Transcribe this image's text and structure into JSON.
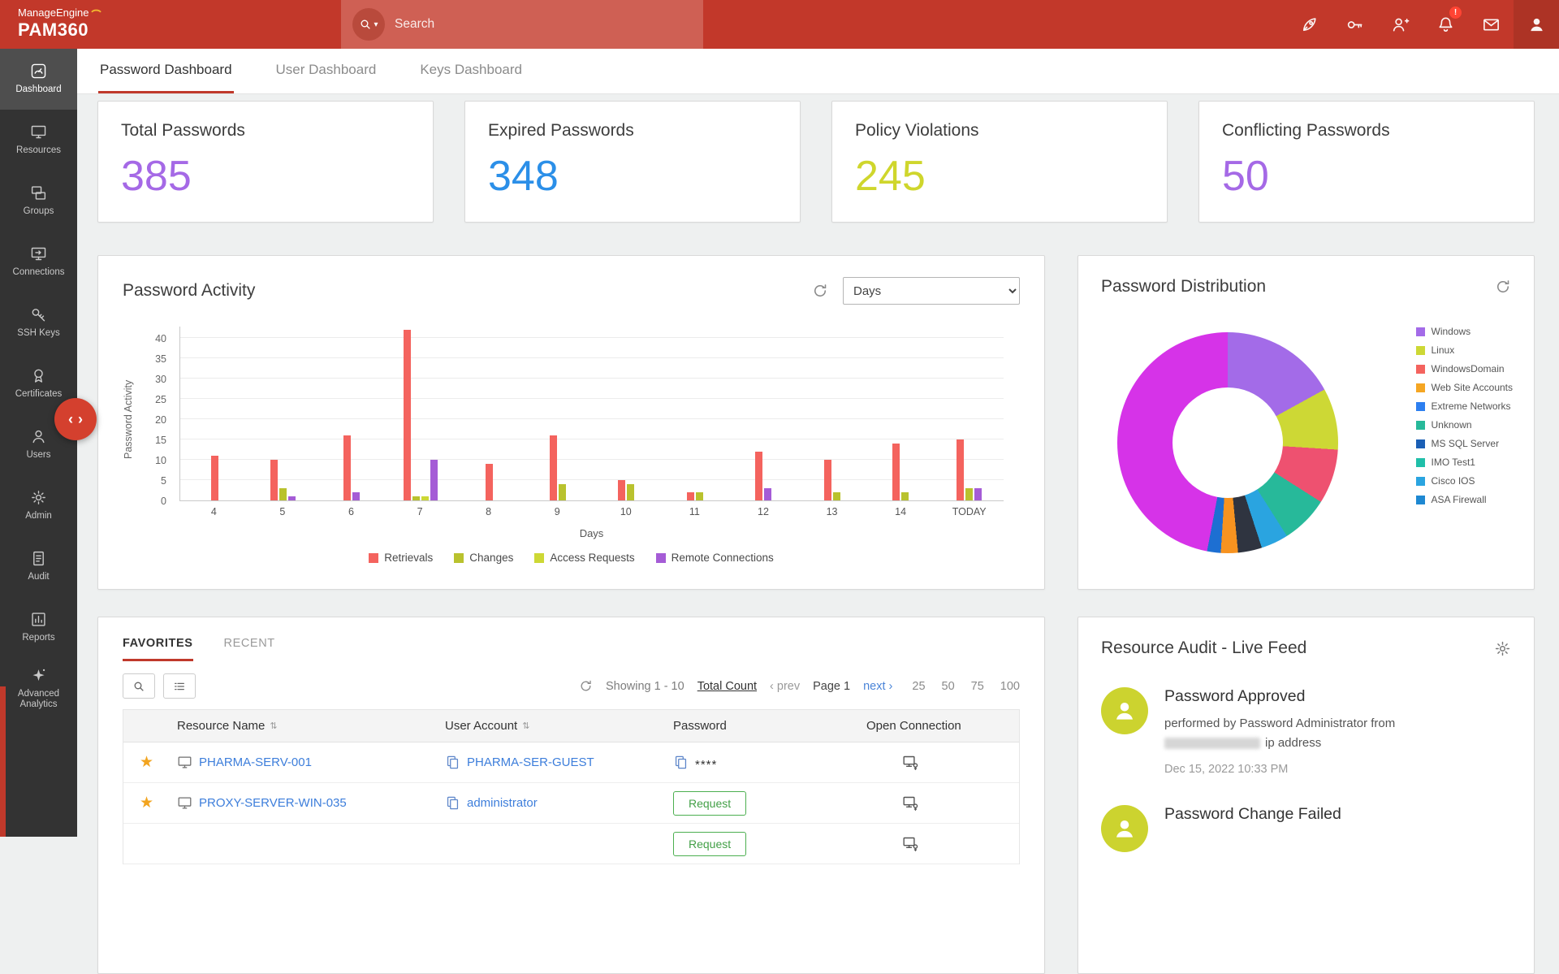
{
  "topbar": {
    "brand_top": "ManageEngine",
    "brand_bottom": "PAM360",
    "search_placeholder": "Search",
    "notification_badge": "!"
  },
  "sidebar": {
    "items": [
      {
        "label": "Dashboard",
        "active": true
      },
      {
        "label": "Resources"
      },
      {
        "label": "Groups"
      },
      {
        "label": "Connections"
      },
      {
        "label": "SSH Keys"
      },
      {
        "label": "Certificates"
      },
      {
        "label": "Users"
      },
      {
        "label": "Admin"
      },
      {
        "label": "Audit"
      },
      {
        "label": "Reports"
      },
      {
        "label": "Advanced Analytics"
      }
    ]
  },
  "tabs": [
    {
      "label": "Password Dashboard",
      "active": true
    },
    {
      "label": "User Dashboard"
    },
    {
      "label": "Keys Dashboard"
    }
  ],
  "stat_cards": [
    {
      "title": "Total Passwords",
      "value": "385",
      "color": "#a569e6"
    },
    {
      "title": "Expired Passwords",
      "value": "348",
      "color": "#2b8fe8"
    },
    {
      "title": "Policy Violations",
      "value": "245",
      "color": "#cfd62c"
    },
    {
      "title": "Conflicting Passwords",
      "value": "50",
      "color": "#a569e6"
    }
  ],
  "password_activity": {
    "title": "Password Activity",
    "interval_selected": "Days"
  },
  "password_distribution": {
    "title": "Password Distribution"
  },
  "chart_data": [
    {
      "type": "bar",
      "title": "Password Activity",
      "xlabel": "Days",
      "ylabel": "Password Activity",
      "ylim": [
        0,
        40
      ],
      "ytick_step": 5,
      "grid": true,
      "legend_position": "bottom",
      "categories": [
        "4",
        "5",
        "6",
        "7",
        "8",
        "9",
        "10",
        "11",
        "12",
        "13",
        "14",
        "TODAY"
      ],
      "series": [
        {
          "name": "Retrievals",
          "color": "#f4635e",
          "values": [
            11,
            10,
            16,
            42,
            9,
            16,
            5,
            2,
            12,
            10,
            14,
            15
          ]
        },
        {
          "name": "Changes",
          "color": "#b9c22e",
          "values": [
            0,
            3,
            0,
            1,
            0,
            4,
            4,
            2,
            0,
            2,
            2,
            3
          ]
        },
        {
          "name": "Access Requests",
          "color": "#cdd835",
          "values": [
            0,
            0,
            0,
            1,
            0,
            0,
            0,
            0,
            0,
            0,
            0,
            0
          ]
        },
        {
          "name": "Remote Connections",
          "color": "#a55cd6",
          "values": [
            0,
            1,
            2,
            10,
            0,
            0,
            0,
            0,
            3,
            0,
            0,
            3
          ]
        }
      ]
    },
    {
      "type": "pie",
      "donut": true,
      "title": "Password Distribution",
      "legend_position": "right",
      "legend": [
        {
          "label": "Windows",
          "color": "#a36be8"
        },
        {
          "label": "Linux",
          "color": "#cdd835"
        },
        {
          "label": "WindowsDomain",
          "color": "#f4635e"
        },
        {
          "label": "Web Site Accounts",
          "color": "#f5a623"
        },
        {
          "label": "Extreme Networks",
          "color": "#2d7ff0"
        },
        {
          "label": "Unknown",
          "color": "#27b99a"
        },
        {
          "label": "MS SQL Server",
          "color": "#1b5fb5"
        },
        {
          "label": "IMO Test1",
          "color": "#20bfa9"
        },
        {
          "label": "Cisco IOS",
          "color": "#2aa4e0"
        },
        {
          "label": "ASA Firewall",
          "color": "#1e88d2"
        }
      ],
      "segments": [
        {
          "color": "#a36be8",
          "value": 17
        },
        {
          "color": "#cdd835",
          "value": 9
        },
        {
          "color": "#ee5170",
          "value": 8
        },
        {
          "color": "#27b99a",
          "value": 7
        },
        {
          "color": "#2aa4e0",
          "value": 4
        },
        {
          "color": "#2f3440",
          "value": 3.5
        },
        {
          "color": "#f79320",
          "value": 2.5
        },
        {
          "color": "#1d6fd2",
          "value": 2
        },
        {
          "color": "#d633e8",
          "value": 47
        }
      ]
    }
  ],
  "favorites": {
    "tabs": [
      {
        "label": "FAVORITES",
        "active": true
      },
      {
        "label": "RECENT"
      }
    ],
    "toolbar": {
      "showing": "Showing 1 - 10",
      "total_count": "Total Count",
      "prev": "prev",
      "page": "Page 1",
      "next": "next",
      "page_sizes": [
        "25",
        "50",
        "75",
        "100"
      ]
    },
    "columns": [
      "Resource Name",
      "User Account",
      "Password",
      "Open Connection"
    ],
    "rows": [
      {
        "resource": "PHARMA-SERV-001",
        "account": "PHARMA-SER-GUEST",
        "password": "****",
        "type": "masked"
      },
      {
        "resource": "PROXY-SERVER-WIN-035",
        "account": "administrator",
        "password": "Request",
        "type": "request"
      },
      {
        "password": "Request",
        "type": "request"
      }
    ]
  },
  "live_feed": {
    "title": "Resource Audit - Live Feed",
    "items": [
      {
        "title": "Password Approved",
        "description_prefix": "performed by Password Administrator from",
        "description_suffix": "ip address",
        "redacted": true,
        "time": "Dec 15, 2022 10:33 PM"
      },
      {
        "title": "Password Change Failed"
      }
    ]
  }
}
